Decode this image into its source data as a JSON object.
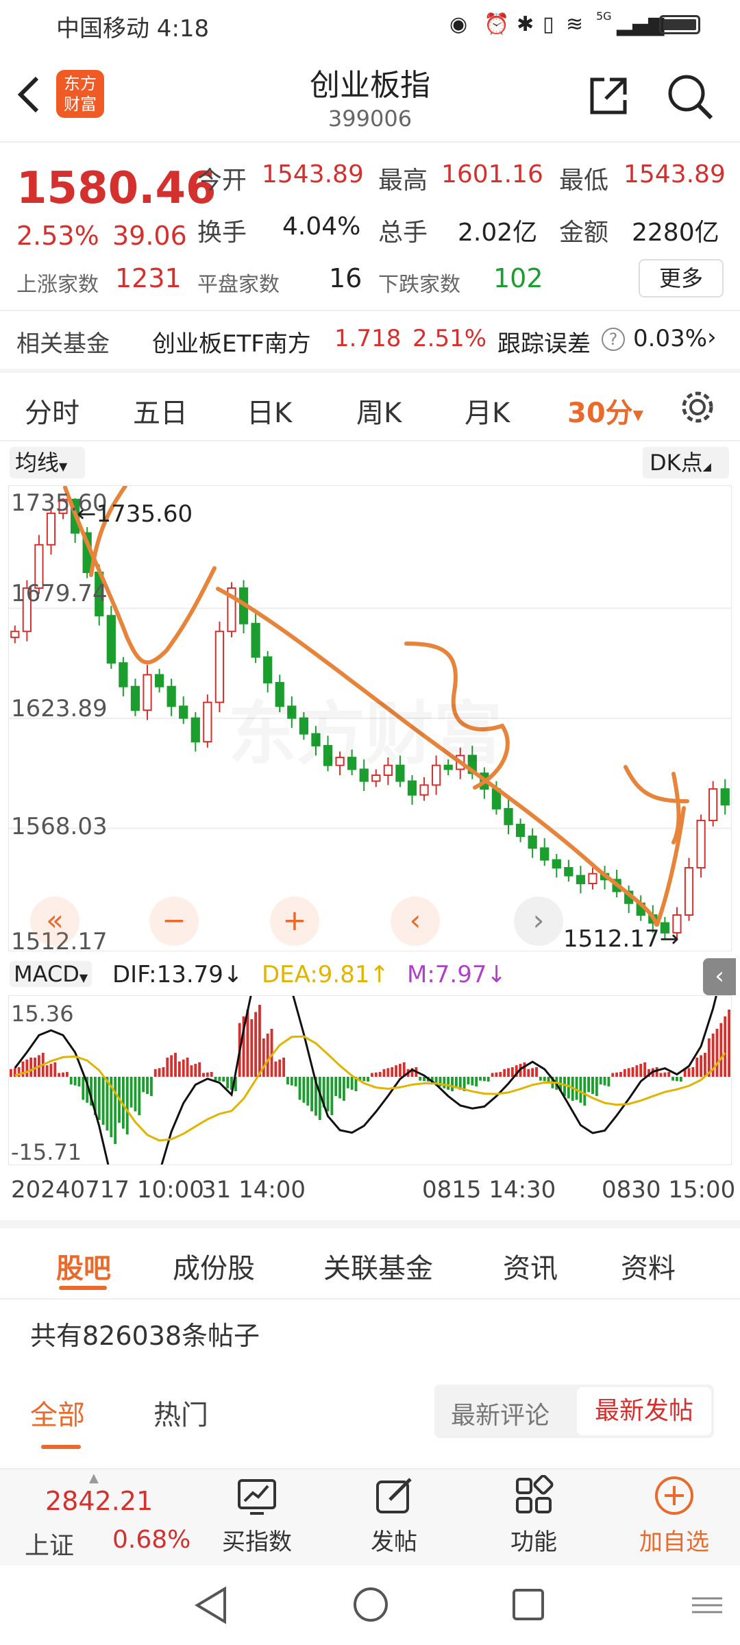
{
  "status_bar": {
    "carrier_time": "中国移动 4:18",
    "net": "5G"
  },
  "header": {
    "logo_line1": "东方",
    "logo_line2": "财富",
    "title": "创业板指",
    "code": "399006"
  },
  "quote": {
    "price": "1580.46",
    "pct": "2.53%",
    "chg": "39.06",
    "open_label": "今开",
    "open": "1543.89",
    "high_label": "最高",
    "high": "1601.16",
    "low_label": "最低",
    "low": "1543.89",
    "turnover_label": "换手",
    "turnover": "4.04%",
    "volume_label": "总手",
    "volume": "2.02亿",
    "amount_label": "金额",
    "amount": "2280亿",
    "up_label": "上涨家数",
    "up": "1231",
    "flat_label": "平盘家数",
    "flat": "16",
    "down_label": "下跌家数",
    "down": "102",
    "more_button": "更多"
  },
  "fund_row": {
    "label": "相关基金",
    "name": "创业板ETF南方",
    "price": "1.718",
    "pct": "2.51%",
    "track_label": "跟踪误差",
    "track_value": "0.03%"
  },
  "period_tabs": [
    "分时",
    "五日",
    "日K",
    "周K",
    "月K",
    "30分"
  ],
  "chart_controls": {
    "ma_label": "均线",
    "dk_label": "DK点"
  },
  "chart_data": {
    "type": "candlestick",
    "y_ticks": [
      "1735.60",
      "1679.74",
      "1623.89",
      "1568.03",
      "1512.17"
    ],
    "high_marker": "←1735.60",
    "low_marker": "1512.17→",
    "x_ticks": [
      "20240717 10:00",
      "31 14:00",
      "0815 14:30",
      "0830 15:00"
    ],
    "ylim": [
      1512.17,
      1735.6
    ],
    "close_trend": [
      1668,
      1690,
      1712,
      1728,
      1735,
      1718,
      1698,
      1676,
      1652,
      1640,
      1628,
      1646,
      1640,
      1630,
      1624,
      1612,
      1632,
      1668,
      1690,
      1672,
      1655,
      1642,
      1630,
      1624,
      1616,
      1610,
      1600,
      1604,
      1598,
      1592,
      1595,
      1600,
      1592,
      1585,
      1590,
      1600,
      1598,
      1605,
      1596,
      1588,
      1578,
      1570,
      1564,
      1558,
      1552,
      1548,
      1544,
      1540,
      1545,
      1542,
      1536,
      1530,
      1524,
      1520,
      1515,
      1524,
      1548,
      1572,
      1588,
      1580
    ]
  },
  "macd": {
    "label": "MACD",
    "dif": "DIF:13.79",
    "dea": "DEA:9.81",
    "m": "M:7.97",
    "y_max": "15.36",
    "y_min": "-15.71",
    "hist": [
      2,
      4,
      5,
      3,
      1,
      -2,
      -6,
      -10,
      -14,
      -12,
      -8,
      -4,
      2,
      5,
      4,
      3,
      1,
      -1,
      -3,
      14,
      15,
      10,
      4,
      -2,
      -6,
      -9,
      -8,
      -5,
      -3,
      -1,
      1,
      2,
      3,
      2,
      -1,
      -2,
      -3,
      -3,
      -2,
      -1,
      1,
      2,
      3,
      2,
      -1,
      -3,
      -5,
      -6,
      -4,
      -2,
      1,
      2,
      3,
      2,
      1,
      -1,
      2,
      5,
      10,
      14
    ]
  },
  "sub_tabs": [
    "股吧",
    "成份股",
    "关联基金",
    "资讯",
    "资料"
  ],
  "posts_count": "共有826038条帖子",
  "filter": {
    "all": "全部",
    "hot": "热门",
    "latest_comment": "最新评论",
    "latest_post": "最新发帖"
  },
  "bottom_bar": {
    "index_value": "2842.21",
    "index_name": "上证",
    "index_pct": "0.68%",
    "buy": "买指数",
    "post": "发帖",
    "func": "功能",
    "add": "加自选"
  }
}
